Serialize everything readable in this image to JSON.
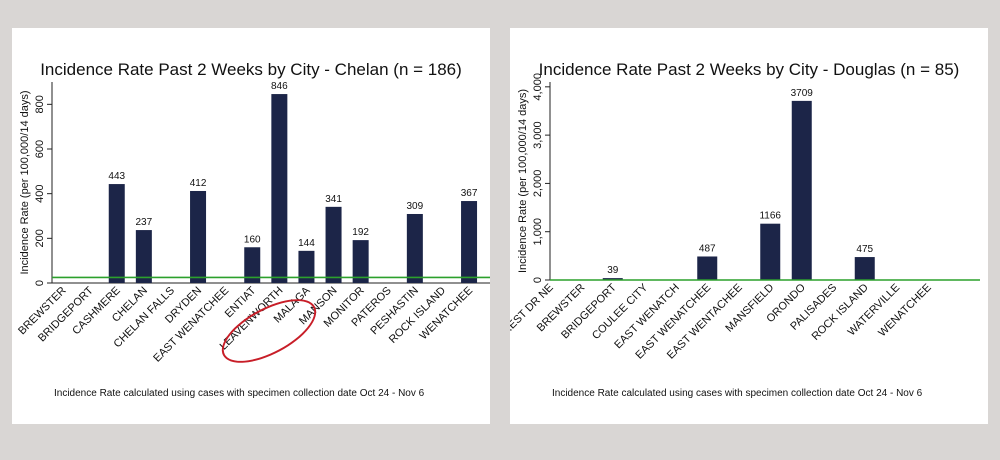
{
  "charts": [
    {
      "title": "Incidence Rate Past 2 Weeks by City - Chelan (n = 186)",
      "footnote": "Incidence Rate calculated using cases with specimen collection date Oct 24 - Nov 6"
    },
    {
      "title": "Incidence Rate Past 2 Weeks by City - Douglas (n = 85)",
      "footnote": "Incidence Rate calculated using cases with specimen collection date Oct 24 - Nov 6"
    }
  ],
  "colors": {
    "bar": "#1c2548",
    "reference_line": "#2ca02c",
    "annotation": "#c81e28"
  },
  "chart_data": [
    {
      "type": "bar",
      "title": "Incidence Rate Past 2 Weeks by City - Chelan (n = 186)",
      "ylabel": "Incidence Rate (per 100,000/14 days)",
      "xlabel": "",
      "ylim": [
        0,
        900
      ],
      "yticks": [
        "0",
        "200",
        "400",
        "600",
        "800"
      ],
      "ytick_values": [
        0,
        200,
        400,
        600,
        800
      ],
      "categories": [
        "BREWSTER",
        "BRIDGEPORT",
        "CASHMERE",
        "CHELAN",
        "CHELAN FALLS",
        "DRYDEN",
        "EAST WENATCHEE",
        "ENTIAT",
        "LEAVENWORTH",
        "MALAGA",
        "MANSON",
        "MONITOR",
        "PATEROS",
        "PESHASTIN",
        "ROCK ISLAND",
        "WENATCHEE"
      ],
      "values": [
        null,
        null,
        443,
        237,
        null,
        412,
        null,
        160,
        846,
        144,
        341,
        192,
        null,
        309,
        null,
        367
      ],
      "labels": [
        "",
        "",
        "443",
        "237",
        "",
        "412",
        "",
        "160",
        "846",
        "144",
        "341",
        "192",
        "",
        "309",
        "",
        "367"
      ],
      "reference_line": 25,
      "annotation": "LEAVENWORTH circled in red"
    },
    {
      "type": "bar",
      "title": "Incidence Rate Past 2 Weeks by City - Douglas (n = 85)",
      "ylabel": "Incidence Rate (per 100,000/14 days)",
      "xlabel": "",
      "ylim": [
        0,
        4100
      ],
      "yticks": [
        "0",
        "1,000",
        "2,000",
        "3,000",
        "4,000"
      ],
      "ytick_values": [
        0,
        1000,
        2000,
        3000,
        4000
      ],
      "categories": [
        "JE CREST DR NE",
        "BREWSTER",
        "BRIDGEPORT",
        "COULEE CITY",
        "EAST WENATCH",
        "EAST WENATCHEE",
        "EAST WENTACHEE",
        "MANSFIELD",
        "ORONDO",
        "PALISADES",
        "ROCK ISLAND",
        "WATERVILLE",
        "WENATCHEE"
      ],
      "values": [
        null,
        null,
        39,
        null,
        null,
        487,
        null,
        1166,
        3709,
        null,
        475,
        null,
        null
      ],
      "labels": [
        "",
        "",
        "39",
        "",
        "",
        "487",
        "",
        "1166",
        "3709",
        "",
        "475",
        "",
        ""
      ],
      "reference_line": 0
    }
  ]
}
